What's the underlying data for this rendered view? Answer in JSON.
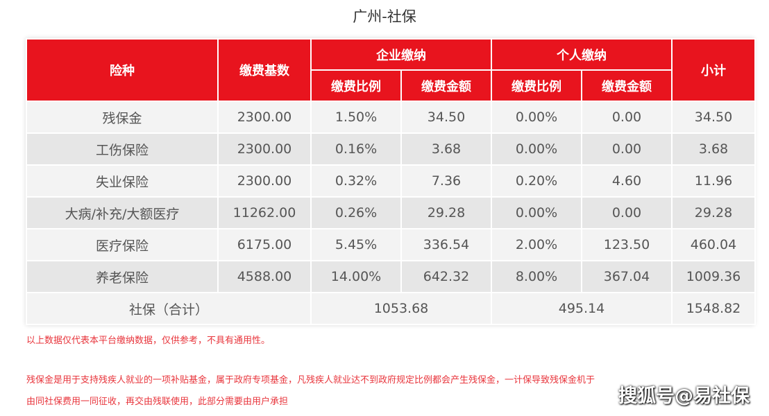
{
  "title": "广州-社保",
  "headers": {
    "type": "险种",
    "base": "缴费基数",
    "company": "企业缴纳",
    "personal": "个人缴纳",
    "subtotal": "小计",
    "ratio": "缴费比例",
    "amount": "缴费金额"
  },
  "rows": [
    {
      "name": "残保金",
      "base": "2300.00",
      "c_ratio": "1.50%",
      "c_amt": "34.50",
      "p_ratio": "0.00%",
      "p_amt": "0.00",
      "sub": "34.50"
    },
    {
      "name": "工伤保险",
      "base": "2300.00",
      "c_ratio": "0.16%",
      "c_amt": "3.68",
      "p_ratio": "0.00%",
      "p_amt": "0.00",
      "sub": "3.68"
    },
    {
      "name": "失业保险",
      "base": "2300.00",
      "c_ratio": "0.32%",
      "c_amt": "7.36",
      "p_ratio": "0.20%",
      "p_amt": "4.60",
      "sub": "11.96"
    },
    {
      "name": "大病/补充/大额医疗",
      "base": "11262.00",
      "c_ratio": "0.26%",
      "c_amt": "29.28",
      "p_ratio": "0.00%",
      "p_amt": "0.00",
      "sub": "29.28"
    },
    {
      "name": "医疗保险",
      "base": "6175.00",
      "c_ratio": "5.45%",
      "c_amt": "336.54",
      "p_ratio": "2.00%",
      "p_amt": "123.50",
      "sub": "460.04"
    },
    {
      "name": "养老保险",
      "base": "4588.00",
      "c_ratio": "14.00%",
      "c_amt": "642.32",
      "p_ratio": "8.00%",
      "p_amt": "367.04",
      "sub": "1009.36"
    }
  ],
  "total": {
    "label": "社保（合计）",
    "company": "1053.68",
    "personal": "495.14",
    "sub": "1548.82"
  },
  "notes": [
    "以上数据仅代表本平台缴纳数据，仅供参考，不具有通用性。",
    "残保金是用于支持残疾人就业的一项补贴基金，属于政府专项基金，凡残疾人就业达不到政府规定比例都会产生残保金，一计保导致残保金机于",
    "由同社保费用一同征收，再交由残联使用，此部分需要由用户承担"
  ],
  "watermark": "搜狐号@易社保"
}
